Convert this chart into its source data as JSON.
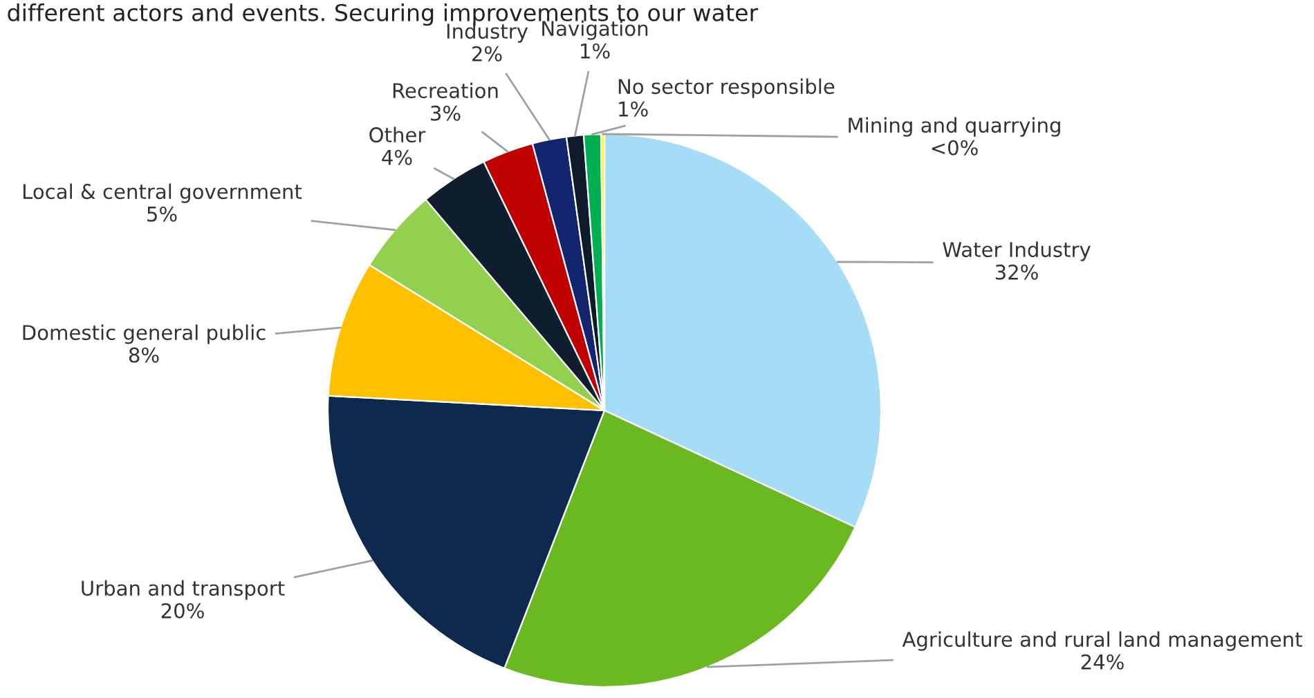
{
  "chart_data": {
    "type": "pie",
    "categories": [
      "Water Industry",
      "Agriculture and rural land management",
      "Urban and transport",
      "Domestic general public",
      "Local & central government",
      "Other",
      "Recreation",
      "Industry",
      "Navigation",
      "No sector responsible",
      "Mining and quarrying"
    ],
    "values": [
      32,
      24,
      20,
      8,
      5,
      4,
      3,
      2,
      1,
      1,
      0.2
    ],
    "value_labels": [
      "32%",
      "24%",
      "20%",
      "8%",
      "5%",
      "4%",
      "3%",
      "2%",
      "1%",
      "1%",
      "<0%"
    ],
    "colors": [
      "#a6dcf6",
      "#6ab920",
      "#0d2a4e",
      "#ffc000",
      "#92d050",
      "#0e1e2e",
      "#c00000",
      "#12256e",
      "#0d1b2a",
      "#00b050",
      "#ffff00"
    ],
    "annotations": [
      "different actors and events. Securing improvements to our water"
    ],
    "legend": false
  }
}
